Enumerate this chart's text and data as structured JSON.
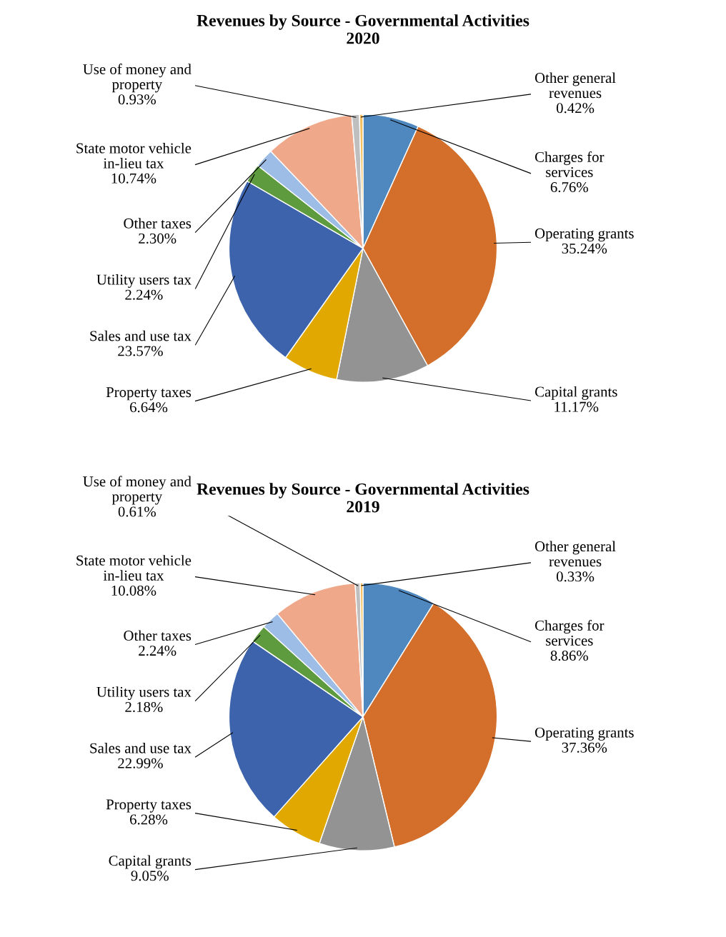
{
  "chart_data": [
    {
      "type": "pie",
      "title": "Revenues by Source - Governmental Activities",
      "subtitle": "2020",
      "categories": [
        "Charges for services",
        "Operating grants",
        "Capital grants",
        "Property taxes",
        "Sales and use tax",
        "Utility users tax",
        "Other taxes",
        "State motor vehicle in-lieu tax",
        "Use of money and property",
        "Other general revenues"
      ],
      "values": [
        6.76,
        35.24,
        11.17,
        6.64,
        23.57,
        2.24,
        2.3,
        10.74,
        0.93,
        0.42
      ],
      "value_labels": [
        "6.76%",
        "35.24%",
        "11.17%",
        "6.64%",
        "23.57%",
        "2.24%",
        "2.30%",
        "10.74%",
        "0.93%",
        "0.42%"
      ],
      "colors": [
        "#4f88bf",
        "#d46f2b",
        "#939393",
        "#e0a800",
        "#3c63ac",
        "#5e9a3e",
        "#9dbde6",
        "#f0a88a",
        "#bfbfbf",
        "#f5c060"
      ]
    },
    {
      "type": "pie",
      "title": "Revenues by Source - Governmental Activities",
      "subtitle": "2019",
      "categories": [
        "Charges for services",
        "Operating grants",
        "Capital grants",
        "Property taxes",
        "Sales and use tax",
        "Utility users tax",
        "Other taxes",
        "State motor vehicle in-lieu tax",
        "Use of money and property",
        "Other general revenues"
      ],
      "values": [
        8.86,
        37.36,
        9.05,
        6.28,
        22.99,
        2.18,
        2.24,
        10.08,
        0.61,
        0.33
      ],
      "value_labels": [
        "8.86%",
        "37.36%",
        "9.05%",
        "6.28%",
        "22.99%",
        "2.18%",
        "2.24%",
        "10.08%",
        "0.61%",
        "0.33%"
      ],
      "colors": [
        "#4f88bf",
        "#d46f2b",
        "#939393",
        "#e0a800",
        "#3c63ac",
        "#5e9a3e",
        "#9dbde6",
        "#f0a88a",
        "#bfbfbf",
        "#f5c060"
      ]
    }
  ]
}
